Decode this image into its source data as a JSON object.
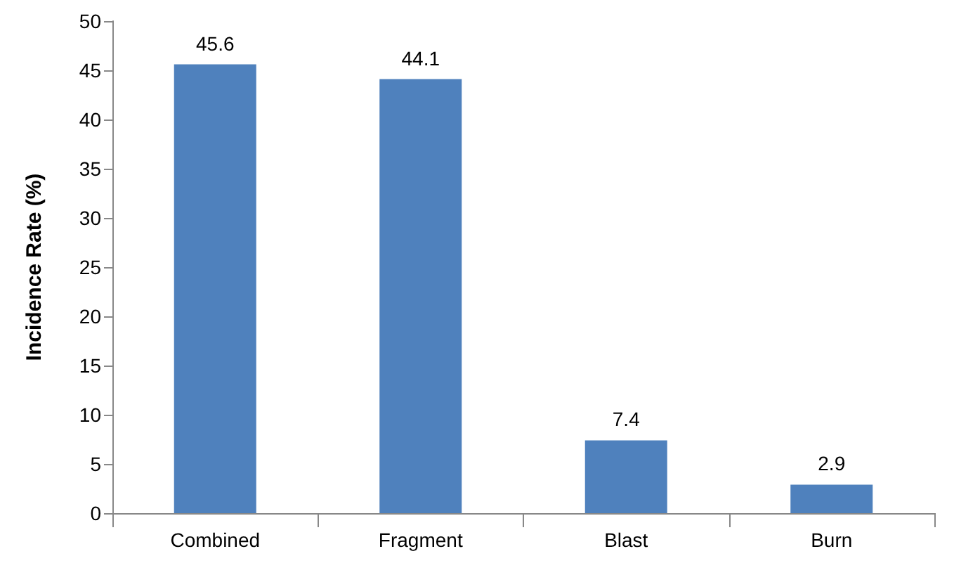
{
  "chart_data": {
    "type": "bar",
    "ylabel": "Incidence Rate (%)",
    "categories": [
      "Combined",
      "Fragment",
      "Blast",
      "Burn"
    ],
    "values": [
      45.6,
      44.1,
      7.4,
      2.9
    ],
    "color": "#4f81bd",
    "ylim": [
      0,
      50
    ],
    "yticks": [
      0,
      5,
      10,
      15,
      20,
      25,
      30,
      35,
      40,
      45,
      50
    ],
    "grid": false,
    "data_labels": true
  }
}
